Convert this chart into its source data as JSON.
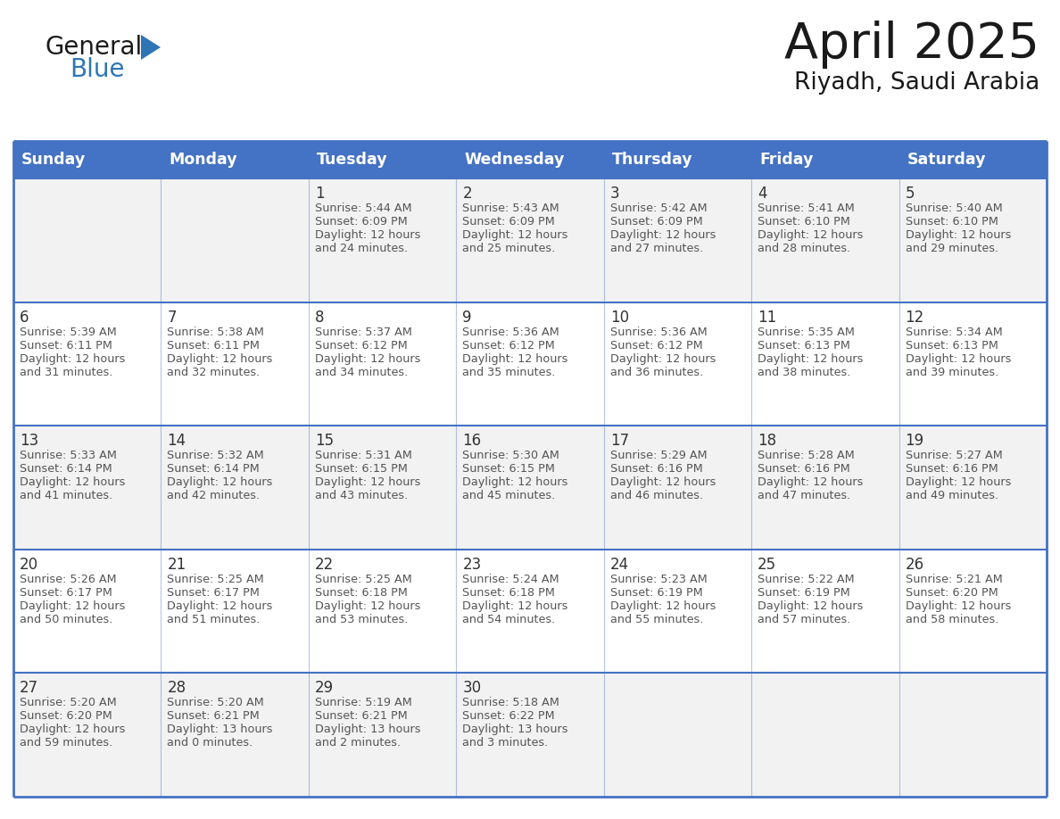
{
  "title": "April 2025",
  "subtitle": "Riyadh, Saudi Arabia",
  "days_of_week": [
    "Sunday",
    "Monday",
    "Tuesday",
    "Wednesday",
    "Thursday",
    "Friday",
    "Saturday"
  ],
  "header_bg": "#4472C4",
  "header_text": "#FFFFFF",
  "cell_bg_light": "#F2F2F2",
  "cell_bg_white": "#FFFFFF",
  "border_color": "#4472C4",
  "day_num_color": "#333333",
  "text_color": "#555555",
  "logo_general_color": "#1a1a1a",
  "logo_blue_color": "#2E75B6",
  "calendar_data": [
    [
      {
        "day": null,
        "sunrise": null,
        "sunset": null,
        "daylight": null
      },
      {
        "day": null,
        "sunrise": null,
        "sunset": null,
        "daylight": null
      },
      {
        "day": 1,
        "sunrise": "5:44 AM",
        "sunset": "6:09 PM",
        "daylight": "12 hours\nand 24 minutes."
      },
      {
        "day": 2,
        "sunrise": "5:43 AM",
        "sunset": "6:09 PM",
        "daylight": "12 hours\nand 25 minutes."
      },
      {
        "day": 3,
        "sunrise": "5:42 AM",
        "sunset": "6:09 PM",
        "daylight": "12 hours\nand 27 minutes."
      },
      {
        "day": 4,
        "sunrise": "5:41 AM",
        "sunset": "6:10 PM",
        "daylight": "12 hours\nand 28 minutes."
      },
      {
        "day": 5,
        "sunrise": "5:40 AM",
        "sunset": "6:10 PM",
        "daylight": "12 hours\nand 29 minutes."
      }
    ],
    [
      {
        "day": 6,
        "sunrise": "5:39 AM",
        "sunset": "6:11 PM",
        "daylight": "12 hours\nand 31 minutes."
      },
      {
        "day": 7,
        "sunrise": "5:38 AM",
        "sunset": "6:11 PM",
        "daylight": "12 hours\nand 32 minutes."
      },
      {
        "day": 8,
        "sunrise": "5:37 AM",
        "sunset": "6:12 PM",
        "daylight": "12 hours\nand 34 minutes."
      },
      {
        "day": 9,
        "sunrise": "5:36 AM",
        "sunset": "6:12 PM",
        "daylight": "12 hours\nand 35 minutes."
      },
      {
        "day": 10,
        "sunrise": "5:36 AM",
        "sunset": "6:12 PM",
        "daylight": "12 hours\nand 36 minutes."
      },
      {
        "day": 11,
        "sunrise": "5:35 AM",
        "sunset": "6:13 PM",
        "daylight": "12 hours\nand 38 minutes."
      },
      {
        "day": 12,
        "sunrise": "5:34 AM",
        "sunset": "6:13 PM",
        "daylight": "12 hours\nand 39 minutes."
      }
    ],
    [
      {
        "day": 13,
        "sunrise": "5:33 AM",
        "sunset": "6:14 PM",
        "daylight": "12 hours\nand 41 minutes."
      },
      {
        "day": 14,
        "sunrise": "5:32 AM",
        "sunset": "6:14 PM",
        "daylight": "12 hours\nand 42 minutes."
      },
      {
        "day": 15,
        "sunrise": "5:31 AM",
        "sunset": "6:15 PM",
        "daylight": "12 hours\nand 43 minutes."
      },
      {
        "day": 16,
        "sunrise": "5:30 AM",
        "sunset": "6:15 PM",
        "daylight": "12 hours\nand 45 minutes."
      },
      {
        "day": 17,
        "sunrise": "5:29 AM",
        "sunset": "6:16 PM",
        "daylight": "12 hours\nand 46 minutes."
      },
      {
        "day": 18,
        "sunrise": "5:28 AM",
        "sunset": "6:16 PM",
        "daylight": "12 hours\nand 47 minutes."
      },
      {
        "day": 19,
        "sunrise": "5:27 AM",
        "sunset": "6:16 PM",
        "daylight": "12 hours\nand 49 minutes."
      }
    ],
    [
      {
        "day": 20,
        "sunrise": "5:26 AM",
        "sunset": "6:17 PM",
        "daylight": "12 hours\nand 50 minutes."
      },
      {
        "day": 21,
        "sunrise": "5:25 AM",
        "sunset": "6:17 PM",
        "daylight": "12 hours\nand 51 minutes."
      },
      {
        "day": 22,
        "sunrise": "5:25 AM",
        "sunset": "6:18 PM",
        "daylight": "12 hours\nand 53 minutes."
      },
      {
        "day": 23,
        "sunrise": "5:24 AM",
        "sunset": "6:18 PM",
        "daylight": "12 hours\nand 54 minutes."
      },
      {
        "day": 24,
        "sunrise": "5:23 AM",
        "sunset": "6:19 PM",
        "daylight": "12 hours\nand 55 minutes."
      },
      {
        "day": 25,
        "sunrise": "5:22 AM",
        "sunset": "6:19 PM",
        "daylight": "12 hours\nand 57 minutes."
      },
      {
        "day": 26,
        "sunrise": "5:21 AM",
        "sunset": "6:20 PM",
        "daylight": "12 hours\nand 58 minutes."
      }
    ],
    [
      {
        "day": 27,
        "sunrise": "5:20 AM",
        "sunset": "6:20 PM",
        "daylight": "12 hours\nand 59 minutes."
      },
      {
        "day": 28,
        "sunrise": "5:20 AM",
        "sunset": "6:21 PM",
        "daylight": "13 hours\nand 0 minutes."
      },
      {
        "day": 29,
        "sunrise": "5:19 AM",
        "sunset": "6:21 PM",
        "daylight": "13 hours\nand 2 minutes."
      },
      {
        "day": 30,
        "sunrise": "5:18 AM",
        "sunset": "6:22 PM",
        "daylight": "13 hours\nand 3 minutes."
      },
      {
        "day": null,
        "sunrise": null,
        "sunset": null,
        "daylight": null
      },
      {
        "day": null,
        "sunrise": null,
        "sunset": null,
        "daylight": null
      },
      {
        "day": null,
        "sunrise": null,
        "sunset": null,
        "daylight": null
      }
    ]
  ]
}
